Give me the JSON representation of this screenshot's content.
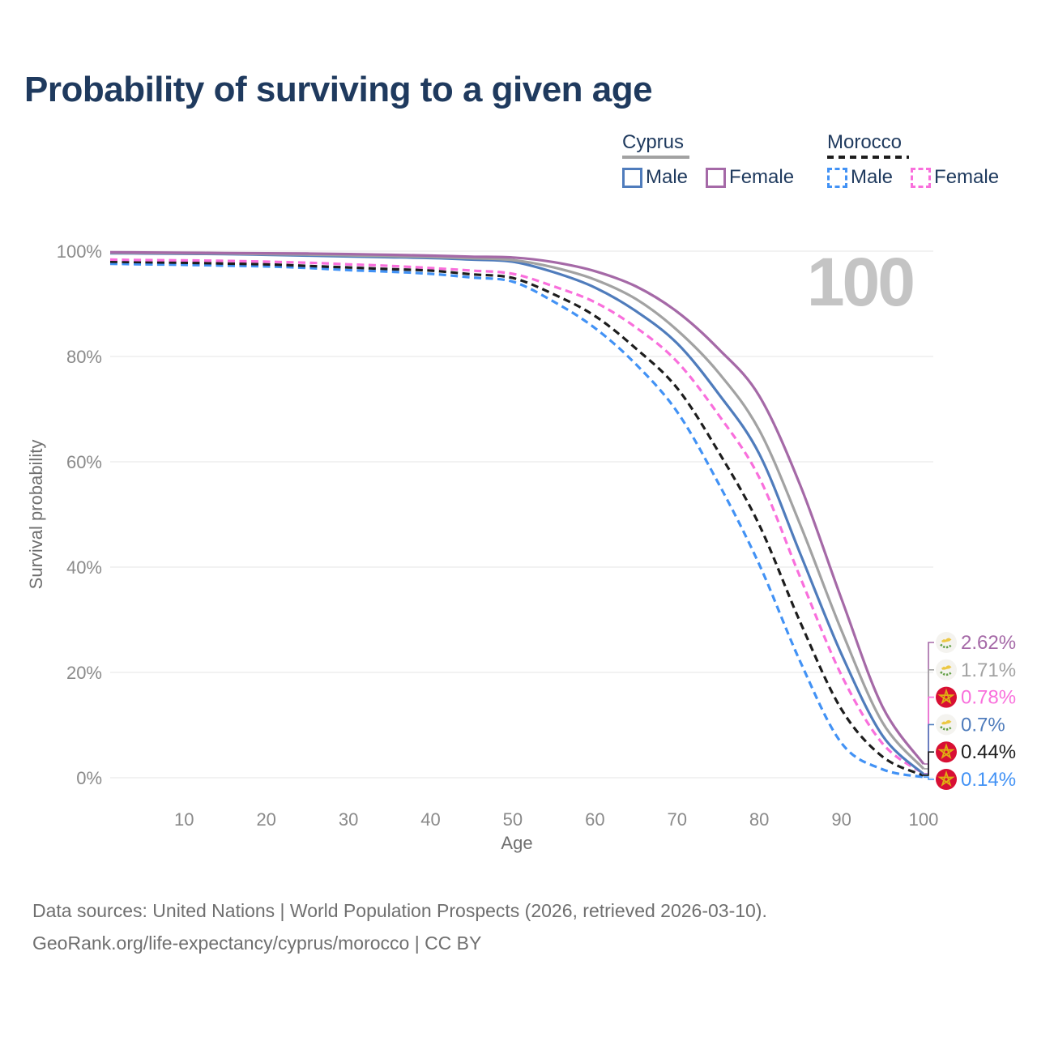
{
  "title": "Probability of surviving to a given age",
  "highlighted_age": "100",
  "legend": {
    "groups": [
      {
        "name": "Cyprus",
        "style": "solid",
        "underline_color": "#a2a2a2",
        "items": [
          {
            "label": "Male",
            "color": "#4f7cbc",
            "dash": false
          },
          {
            "label": "Female",
            "color": "#a569a7",
            "dash": false
          }
        ]
      },
      {
        "name": "Morocco",
        "style": "dashed",
        "underline_color": "#1d1d1d",
        "items": [
          {
            "label": "Male",
            "color": "#4292f5",
            "dash": true
          },
          {
            "label": "Female",
            "color": "#f96fdc",
            "dash": true
          }
        ]
      }
    ]
  },
  "chart_data": {
    "type": "line",
    "title": "Probability of surviving to a given age",
    "xlabel": "Age",
    "ylabel": "Survival probability",
    "xlim": [
      1,
      100
    ],
    "ylim": [
      0,
      100
    ],
    "grid": "horizontal",
    "legend_position": "top-right",
    "x_ticks": [
      10,
      20,
      30,
      40,
      50,
      60,
      70,
      80,
      90,
      100
    ],
    "y_ticks": [
      {
        "value": 0,
        "label": "0%"
      },
      {
        "value": 20,
        "label": "20%"
      },
      {
        "value": 40,
        "label": "40%"
      },
      {
        "value": 60,
        "label": "60%"
      },
      {
        "value": 80,
        "label": "80%"
      },
      {
        "value": 100,
        "label": "100%"
      }
    ],
    "x": [
      1,
      5,
      10,
      15,
      20,
      25,
      30,
      35,
      40,
      45,
      50,
      55,
      60,
      65,
      70,
      75,
      80,
      85,
      90,
      95,
      100
    ],
    "series": [
      {
        "name": "Morocco Male",
        "country": "Morocco",
        "sex": "Male",
        "flag": "morocco",
        "color": "#4292f5",
        "dash": true,
        "end_label": "0.14%",
        "values": [
          97.6,
          97.5,
          97.4,
          97.25,
          97.1,
          96.8,
          96.4,
          96.1,
          95.7,
          95.0,
          94.2,
          90.4,
          85.4,
          78.5,
          69.5,
          56.0,
          40.5,
          22.0,
          6.6,
          1.6,
          0.14
        ]
      },
      {
        "name": "Morocco Both sexes",
        "country": "Morocco",
        "sex": "Both sexes",
        "flag": "morocco",
        "color": "#1d1d1d",
        "dash": true,
        "end_label": "0.44%",
        "values": [
          98.0,
          97.9,
          97.8,
          97.65,
          97.5,
          97.2,
          96.9,
          96.6,
          96.3,
          95.6,
          94.9,
          91.8,
          87.7,
          81.5,
          74.0,
          62.0,
          48.0,
          29.5,
          13.0,
          4.0,
          0.44
        ]
      },
      {
        "name": "Morocco Female",
        "country": "Morocco",
        "sex": "Female",
        "flag": "morocco",
        "color": "#f96fdc",
        "dash": true,
        "end_label": "0.78%",
        "values": [
          98.4,
          98.3,
          98.25,
          98.15,
          98.0,
          97.8,
          97.5,
          97.2,
          96.8,
          96.3,
          95.7,
          93.3,
          90.3,
          85.5,
          79.0,
          69.0,
          57.0,
          38.0,
          19.5,
          6.5,
          0.78
        ]
      },
      {
        "name": "Cyprus Male",
        "country": "Cyprus",
        "sex": "Male",
        "flag": "cyprus",
        "color": "#4f7cbc",
        "dash": false,
        "end_label": "0.7%",
        "values": [
          99.6,
          99.55,
          99.5,
          99.45,
          99.3,
          99.15,
          99.0,
          98.85,
          98.7,
          98.4,
          98.0,
          96.0,
          93.1,
          88.6,
          82.5,
          73.0,
          61.5,
          42.5,
          23.5,
          8.0,
          0.7
        ]
      },
      {
        "name": "Cyprus Both sexes",
        "country": "Cyprus",
        "sex": "Both sexes",
        "flag": "cyprus",
        "color": "#a2a2a2",
        "dash": false,
        "end_label": "1.71%",
        "values": [
          99.7,
          99.65,
          99.6,
          99.55,
          99.45,
          99.35,
          99.2,
          99.05,
          98.9,
          98.65,
          98.3,
          96.9,
          94.6,
          90.9,
          85.0,
          77.0,
          66.0,
          48.0,
          28.0,
          10.5,
          1.71
        ]
      },
      {
        "name": "Cyprus Female",
        "country": "Cyprus",
        "sex": "Female",
        "flag": "cyprus",
        "color": "#a569a7",
        "dash": false,
        "end_label": "2.62%",
        "values": [
          99.8,
          99.75,
          99.7,
          99.65,
          99.6,
          99.55,
          99.45,
          99.3,
          99.15,
          98.95,
          98.8,
          97.9,
          96.2,
          93.3,
          88.5,
          81.5,
          72.5,
          55.5,
          34.0,
          13.5,
          2.62
        ]
      }
    ]
  },
  "footer": {
    "line1": "Data sources: United Nations | World Population Prospects (2026, retrieved 2026-03-10).",
    "line2": "GeoRank.org/life-expectancy/cyprus/morocco | CC BY"
  }
}
